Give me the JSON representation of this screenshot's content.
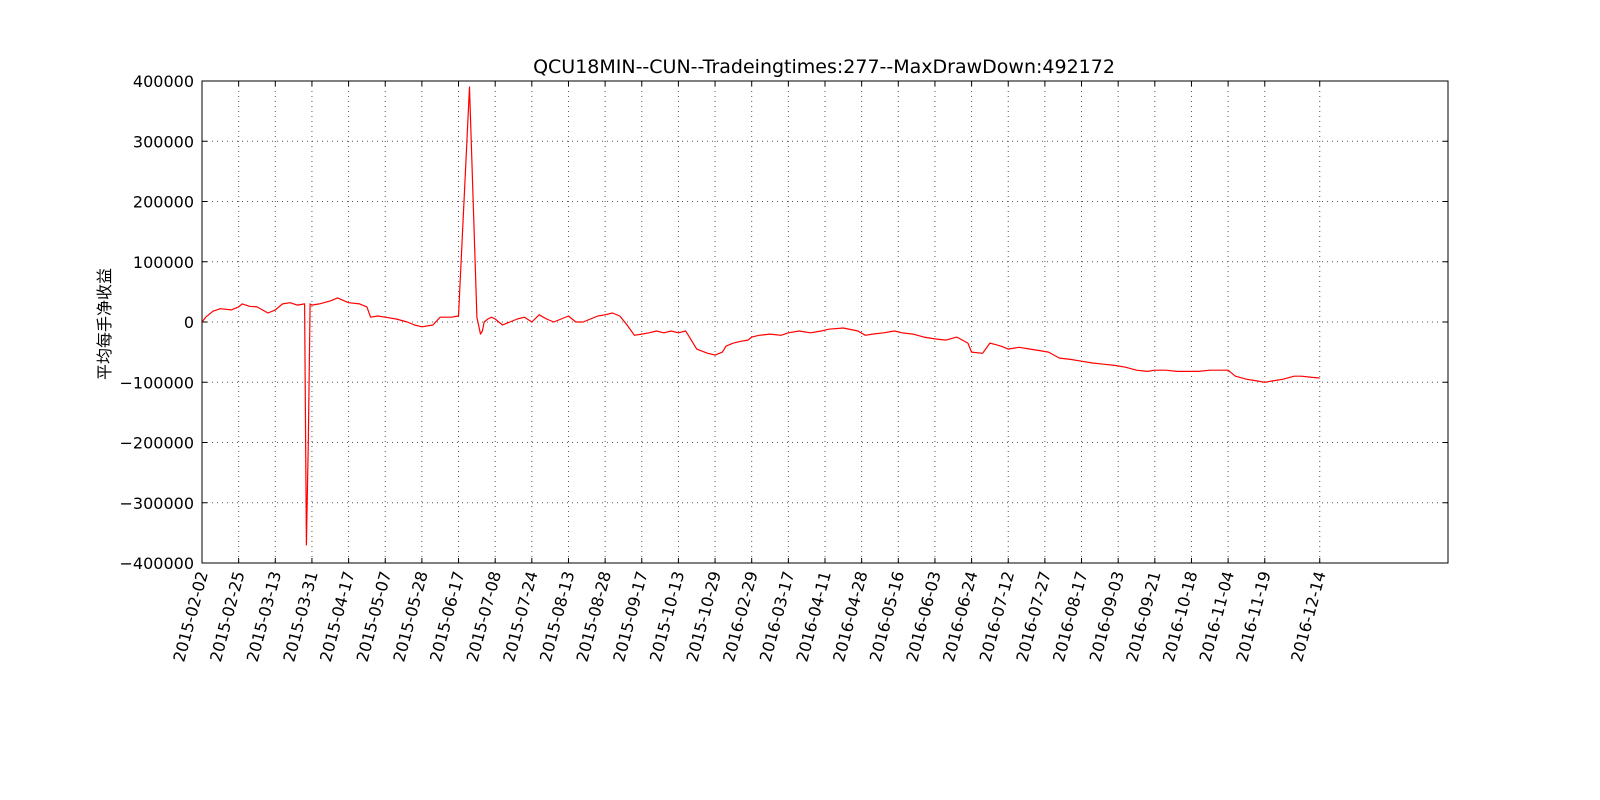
{
  "chart_data": {
    "type": "line",
    "title": "QCU18MIN--CUN--Tradeingtimes:277--MaxDrawDown:492172",
    "xlabel": "",
    "ylabel": "平均每手净收益",
    "ylim": [
      -400000,
      400000
    ],
    "yticks": [
      "400000",
      "300000",
      "200000",
      "100000",
      "0",
      "−100000",
      "−200000",
      "−300000",
      "−400000"
    ],
    "ytick_values": [
      400000,
      300000,
      200000,
      100000,
      0,
      -100000,
      -200000,
      -300000,
      -400000
    ],
    "xlim": [
      0,
      34
    ],
    "xticks": [
      "2015-02-02",
      "2015-02-25",
      "2015-03-13",
      "2015-03-31",
      "2015-04-17",
      "2015-05-07",
      "2015-05-28",
      "2015-06-17",
      "2015-07-08",
      "2015-07-24",
      "2015-08-13",
      "2015-08-28",
      "2015-09-17",
      "2015-10-13",
      "2015-10-29",
      "2016-02-29",
      "2016-03-17",
      "2016-04-11",
      "2016-04-28",
      "2016-05-16",
      "2016-06-03",
      "2016-06-24",
      "2016-07-12",
      "2016-07-27",
      "2016-08-17",
      "2016-09-03",
      "2016-09-21",
      "2016-10-18",
      "2016-11-04",
      "2016-11-19",
      "2016-12-14"
    ],
    "xtick_positions": [
      0,
      1,
      2,
      3,
      4,
      5,
      6,
      7,
      8,
      9,
      10,
      11,
      12,
      13,
      14,
      15,
      16,
      17,
      18,
      19,
      20,
      21,
      22,
      23,
      24,
      25,
      26,
      27,
      28,
      29,
      30.5
    ],
    "grid": true,
    "color": "#ff0000",
    "series": [
      {
        "x": [
          0,
          0.1,
          0.3,
          0.5,
          0.8,
          1.0,
          1.1,
          1.3,
          1.5,
          1.8,
          2.0,
          2.2,
          2.4,
          2.6,
          2.8,
          2.85,
          2.9,
          2.95,
          3.0,
          3.2,
          3.5,
          3.7,
          4.0,
          4.3,
          4.5,
          4.6,
          4.8,
          5.0,
          5.3,
          5.6,
          5.8,
          6.0,
          6.3,
          6.5,
          6.8,
          7.0,
          7.3,
          7.5,
          7.6,
          7.65,
          7.7,
          7.8,
          7.9,
          8.0,
          8.1,
          8.2,
          8.4,
          8.6,
          8.8,
          9.0,
          9.2,
          9.4,
          9.6,
          9.8,
          10.0,
          10.2,
          10.4,
          10.6,
          10.8,
          11.0,
          11.2,
          11.4,
          11.6,
          11.8,
          12.0,
          12.2,
          12.4,
          12.6,
          12.8,
          13.0,
          13.2,
          13.5,
          13.8,
          14.0,
          14.2,
          14.3,
          14.5,
          14.7,
          14.9,
          15.0,
          15.2,
          15.5,
          15.8,
          16.0,
          16.3,
          16.6,
          16.9,
          17.1,
          17.5,
          17.9,
          18.1,
          18.3,
          18.6,
          18.9,
          19.1,
          19.4,
          19.7,
          20.0,
          20.3,
          20.6,
          20.9,
          21.0,
          21.3,
          21.5,
          21.8,
          22.0,
          22.3,
          22.6,
          22.9,
          23.1,
          23.4,
          23.7,
          24.0,
          24.3,
          24.6,
          24.9,
          25.2,
          25.5,
          25.8,
          26.0,
          26.3,
          26.6,
          26.9,
          27.2,
          27.5,
          27.8,
          28.0,
          28.2,
          28.5,
          28.8,
          29.0,
          29.2,
          29.5,
          29.8,
          30.0,
          30.3,
          30.5
        ],
        "y": [
          0,
          8000,
          18000,
          22000,
          20000,
          25000,
          30000,
          26000,
          25000,
          15000,
          20000,
          30000,
          32000,
          28000,
          30000,
          -370000,
          -200000,
          30000,
          28000,
          30000,
          35000,
          40000,
          32000,
          30000,
          25000,
          8000,
          10000,
          8000,
          5000,
          0,
          -5000,
          -8000,
          -5000,
          8000,
          8000,
          10000,
          390000,
          8000,
          -20000,
          -15000,
          0,
          5000,
          8000,
          5000,
          0,
          -5000,
          0,
          5000,
          8000,
          0,
          12000,
          5000,
          0,
          5000,
          10000,
          0,
          0,
          5000,
          10000,
          12000,
          15000,
          10000,
          -5000,
          -22000,
          -20000,
          -18000,
          -15000,
          -18000,
          -15000,
          -18000,
          -15000,
          -45000,
          -52000,
          -55000,
          -50000,
          -40000,
          -35000,
          -32000,
          -30000,
          -25000,
          -22000,
          -20000,
          -22000,
          -18000,
          -15000,
          -18000,
          -15000,
          -12000,
          -10000,
          -15000,
          -22000,
          -20000,
          -18000,
          -15000,
          -18000,
          -20000,
          -25000,
          -28000,
          -30000,
          -25000,
          -35000,
          -50000,
          -52000,
          -35000,
          -40000,
          -45000,
          -42000,
          -45000,
          -48000,
          -50000,
          -60000,
          -62000,
          -65000,
          -68000,
          -70000,
          -72000,
          -75000,
          -80000,
          -82000,
          -80000,
          -80000,
          -82000,
          -82000,
          -82000,
          -80000,
          -80000,
          -80000,
          -90000,
          -95000,
          -98000,
          -100000,
          -98000,
          -95000,
          -90000,
          -90000,
          -92000,
          -93000
        ]
      }
    ]
  }
}
